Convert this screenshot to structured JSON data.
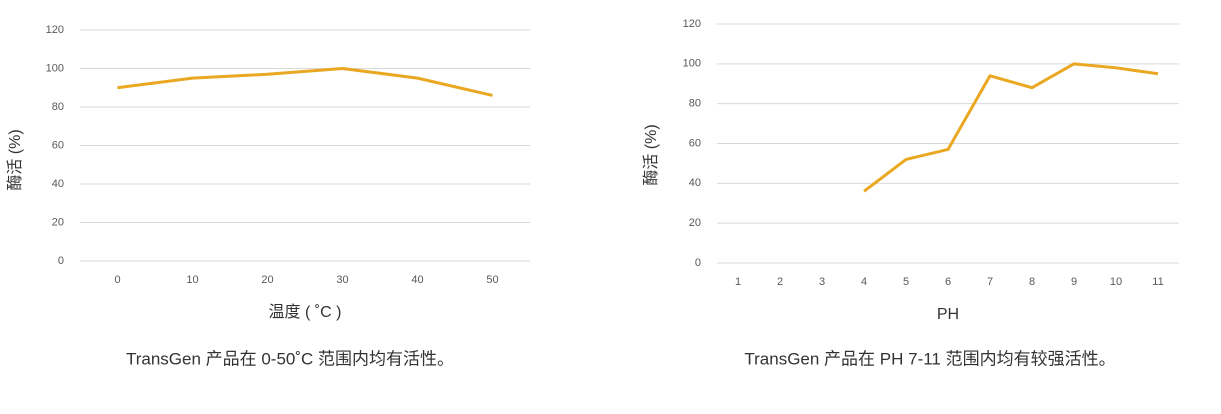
{
  "chart_data": [
    {
      "type": "line",
      "ylabel": "酶活 (%)",
      "xlabel": "温度 ( ˚C )",
      "caption": "TransGen 产品在 0-50˚C 范围内均有活性。",
      "categories": [
        "0",
        "10",
        "20",
        "30",
        "40",
        "50"
      ],
      "series": [
        {
          "color": "#eaa722",
          "values": [
            90,
            95,
            97,
            100,
            95,
            86
          ]
        }
      ],
      "ylim": [
        0,
        120
      ],
      "yticks": [
        0,
        20,
        40,
        60,
        80,
        100,
        120
      ],
      "grid": true
    },
    {
      "type": "line",
      "ylabel": "酶活 (%)",
      "xlabel": "PH",
      "caption": "TransGen 产品在 PH 7-11 范围内均有较强活性。",
      "categories": [
        "1",
        "2",
        "3",
        "4",
        "5",
        "6",
        "7",
        "8",
        "9",
        "10",
        "11"
      ],
      "series": [
        {
          "color": "#eaa722",
          "values": [
            null,
            null,
            null,
            36,
            52,
            57,
            94,
            88,
            100,
            98,
            95
          ]
        }
      ],
      "ylim": [
        0,
        120
      ],
      "yticks": [
        0,
        20,
        40,
        60,
        80,
        100,
        120
      ],
      "grid": true
    }
  ]
}
